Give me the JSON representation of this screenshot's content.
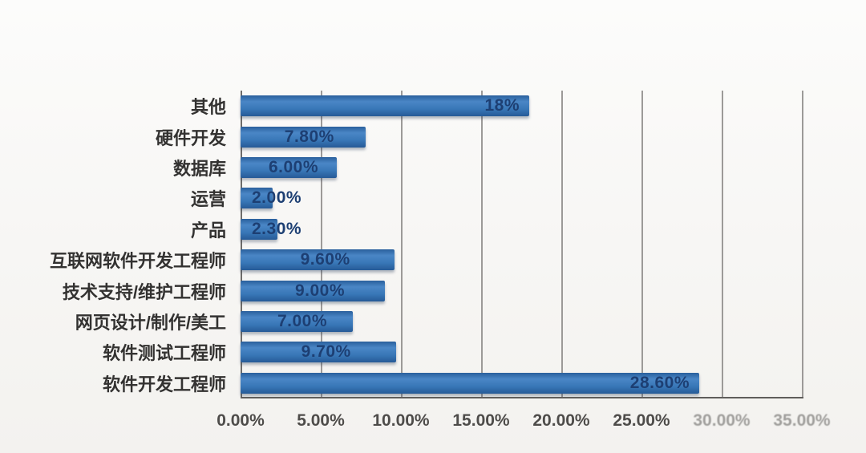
{
  "chart_data": {
    "type": "bar",
    "orientation": "horizontal",
    "title": "",
    "xlabel": "",
    "ylabel": "",
    "categories": [
      "其他",
      "硬件开发",
      "数据库",
      "运营",
      "产品",
      "互联网软件开发工程师",
      "技术支持/维护工程师",
      "网页设计/制作/美工",
      "软件测试工程师",
      "软件开发工程师"
    ],
    "values": [
      18,
      7.8,
      6.0,
      2.0,
      2.3,
      9.6,
      9.0,
      7.0,
      9.7,
      28.6
    ],
    "value_labels": [
      "18%",
      "7.80%",
      "6.00%",
      "2.00%",
      "2.30%",
      "9.60%",
      "9.00%",
      "7.00%",
      "9.70%",
      "28.60%"
    ],
    "x_ticks": [
      "0.00%",
      "5.00%",
      "10.00%",
      "15.00%",
      "20.00%",
      "25.00%",
      "30.00%",
      "35.00%"
    ],
    "xlim": [
      0,
      35
    ],
    "grid": true,
    "legend": false,
    "colors": {
      "bar_top": "#2a5f9c",
      "bar_mid": "#4a86c6",
      "bar_main": "#3877b7",
      "bar_bottom": "#265a97",
      "value_label": "#1d3f73",
      "category_label": "#333231",
      "tick_label": "#4e4c4a",
      "gridline": "#9c9a98"
    }
  }
}
